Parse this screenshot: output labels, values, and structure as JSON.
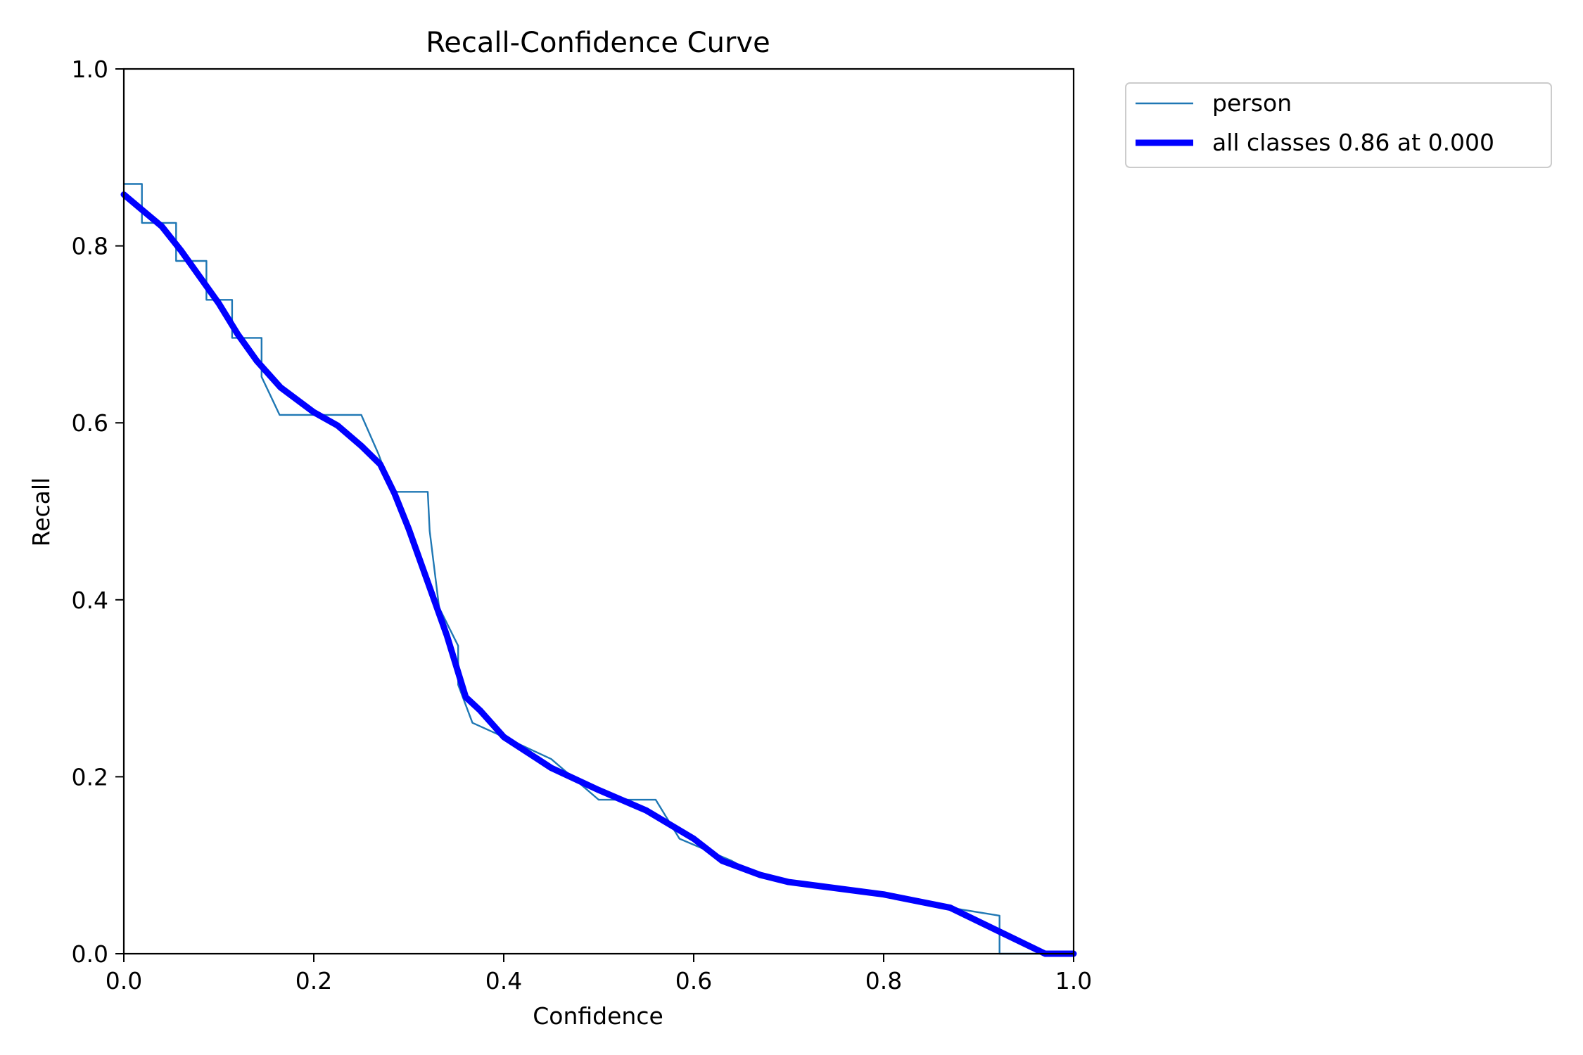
{
  "chart_data": {
    "type": "line",
    "title": "Recall-Confidence Curve",
    "xlabel": "Confidence",
    "ylabel": "Recall",
    "xlim": [
      0,
      1
    ],
    "ylim": [
      0,
      1
    ],
    "xticks": [
      "0.0",
      "0.2",
      "0.4",
      "0.6",
      "0.8",
      "1.0"
    ],
    "yticks": [
      "0.0",
      "0.2",
      "0.4",
      "0.6",
      "0.8",
      "1.0"
    ],
    "grid": false,
    "legend_position": "outside-top-right",
    "series": [
      {
        "name": "person",
        "color": "#1f77b4",
        "x": [
          0.0,
          0.019,
          0.019,
          0.055,
          0.055,
          0.087,
          0.087,
          0.114,
          0.114,
          0.145,
          0.145,
          0.164,
          0.25,
          0.268,
          0.283,
          0.32,
          0.322,
          0.332,
          0.352,
          0.352,
          0.367,
          0.4,
          0.45,
          0.5,
          0.56,
          0.585,
          0.64,
          0.67,
          0.72,
          0.8,
          0.87,
          0.922,
          0.922,
          1.0
        ],
        "y": [
          0.87,
          0.87,
          0.826,
          0.826,
          0.783,
          0.783,
          0.739,
          0.739,
          0.696,
          0.696,
          0.652,
          0.609,
          0.609,
          0.565,
          0.522,
          0.522,
          0.478,
          0.391,
          0.348,
          0.304,
          0.261,
          0.245,
          0.22,
          0.174,
          0.174,
          0.13,
          0.105,
          0.087,
          0.078,
          0.068,
          0.052,
          0.043,
          0.0,
          0.0
        ]
      },
      {
        "name": "all classes 0.86 at 0.000",
        "color": "#0000ff",
        "x": [
          0.0,
          0.02,
          0.04,
          0.06,
          0.08,
          0.1,
          0.12,
          0.14,
          0.165,
          0.2,
          0.225,
          0.25,
          0.27,
          0.285,
          0.3,
          0.32,
          0.34,
          0.36,
          0.375,
          0.4,
          0.45,
          0.5,
          0.55,
          0.6,
          0.63,
          0.67,
          0.7,
          0.8,
          0.87,
          0.92,
          0.97,
          1.0
        ],
        "y": [
          0.858,
          0.84,
          0.822,
          0.795,
          0.765,
          0.735,
          0.7,
          0.67,
          0.64,
          0.612,
          0.597,
          0.574,
          0.553,
          0.52,
          0.48,
          0.42,
          0.36,
          0.29,
          0.275,
          0.245,
          0.21,
          0.185,
          0.162,
          0.13,
          0.105,
          0.089,
          0.081,
          0.067,
          0.052,
          0.026,
          0.0,
          0.0
        ]
      }
    ]
  }
}
